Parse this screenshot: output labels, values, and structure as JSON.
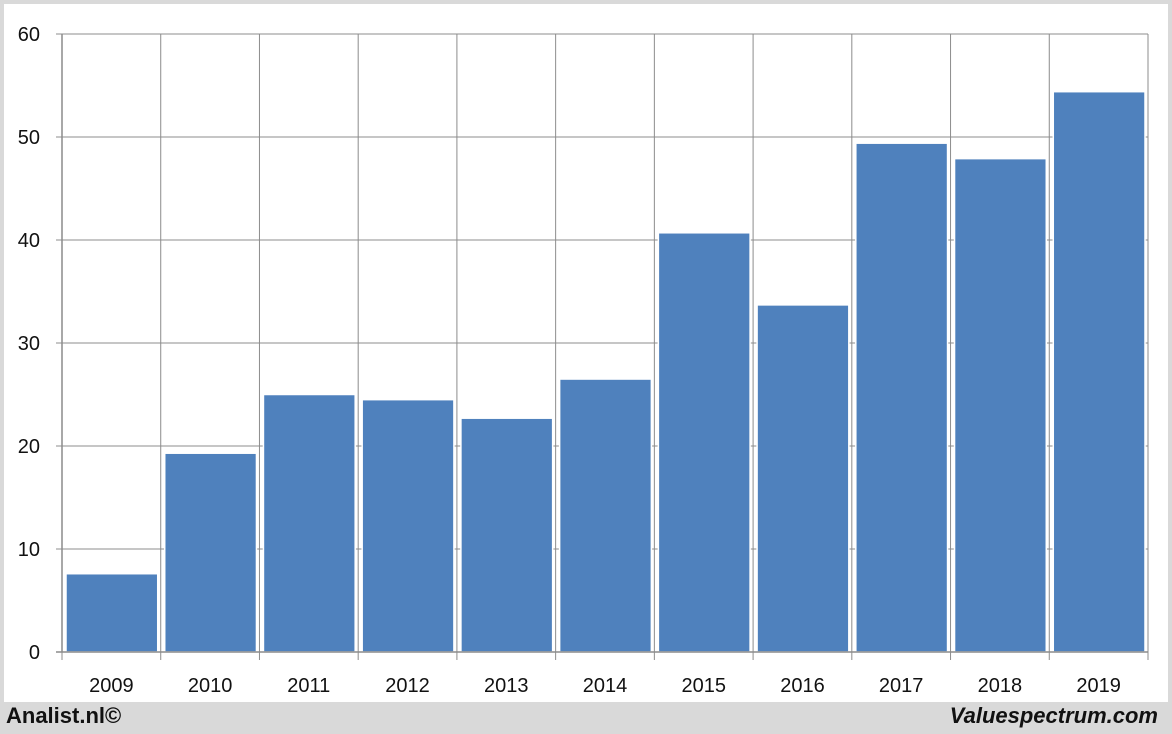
{
  "chart_data": {
    "type": "bar",
    "categories": [
      "2009",
      "2010",
      "2011",
      "2012",
      "2013",
      "2014",
      "2015",
      "2016",
      "2017",
      "2018",
      "2019"
    ],
    "values": [
      7.6,
      19.3,
      25.0,
      24.5,
      22.7,
      26.5,
      40.7,
      33.7,
      49.4,
      47.9,
      54.4
    ],
    "ylim": [
      0,
      60
    ],
    "yticks": [
      "0",
      "10",
      "20",
      "30",
      "40",
      "50",
      "60"
    ],
    "grid": true,
    "bar_color": "#4f81bd"
  },
  "footer": {
    "left_text": "Analist.nl©",
    "right_text": "Valuespectrum.com"
  }
}
